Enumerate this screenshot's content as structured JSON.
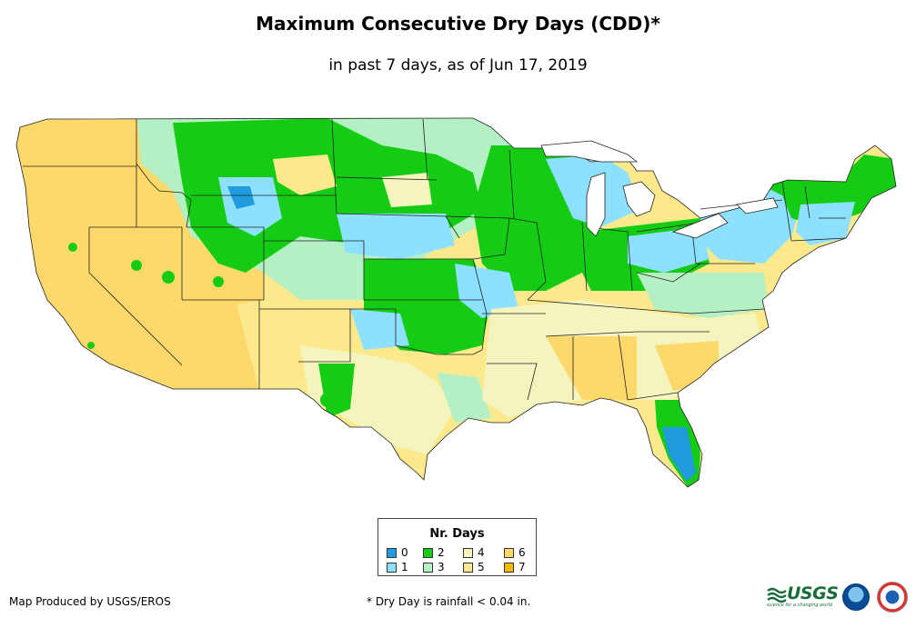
{
  "title": "Maximum Consecutive Dry Days (CDD)*",
  "subtitle": "in past 7 days, as of Jun 17, 2019",
  "legend": {
    "title": "Nr. Days",
    "items": [
      {
        "label": "0",
        "color": "#1f9bde"
      },
      {
        "label": "1",
        "color": "#8ee0ff"
      },
      {
        "label": "2",
        "color": "#14cc14"
      },
      {
        "label": "3",
        "color": "#b5efc4"
      },
      {
        "label": "4",
        "color": "#f4f4bf"
      },
      {
        "label": "5",
        "color": "#fbe98c"
      },
      {
        "label": "6",
        "color": "#fcd96a"
      },
      {
        "label": "7",
        "color": "#f5b800"
      }
    ]
  },
  "credit": "Map Produced by USGS/EROS",
  "footnote": "* Dry Day is rainfall < 0.04 in.",
  "logos": {
    "usgs_text": "USGS",
    "usgs_tagline": "science for a changing world"
  }
}
